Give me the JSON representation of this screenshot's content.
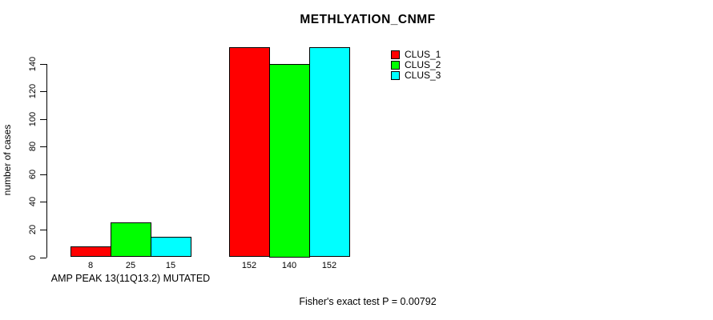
{
  "chart_data": {
    "type": "bar",
    "title": "METHLYATION_CNMF",
    "ylabel": "number of cases",
    "xlabel": "",
    "caption": "Fisher's exact test P = 0.00792",
    "ylim": [
      0,
      155
    ],
    "yticks": [
      0,
      20,
      40,
      60,
      80,
      100,
      120,
      140
    ],
    "grid": false,
    "legend_position": "top-right",
    "categories": [
      "AMP PEAK 13(11Q13.2) MUTATED",
      ""
    ],
    "series": [
      {
        "name": "CLUS_1",
        "color": "#ff0000",
        "values": [
          8,
          152
        ]
      },
      {
        "name": "CLUS_2",
        "color": "#00ff00",
        "values": [
          25,
          140
        ]
      },
      {
        "name": "CLUS_3",
        "color": "#00ffff",
        "values": [
          15,
          152
        ]
      }
    ],
    "bar_value_labels_shown": true
  }
}
